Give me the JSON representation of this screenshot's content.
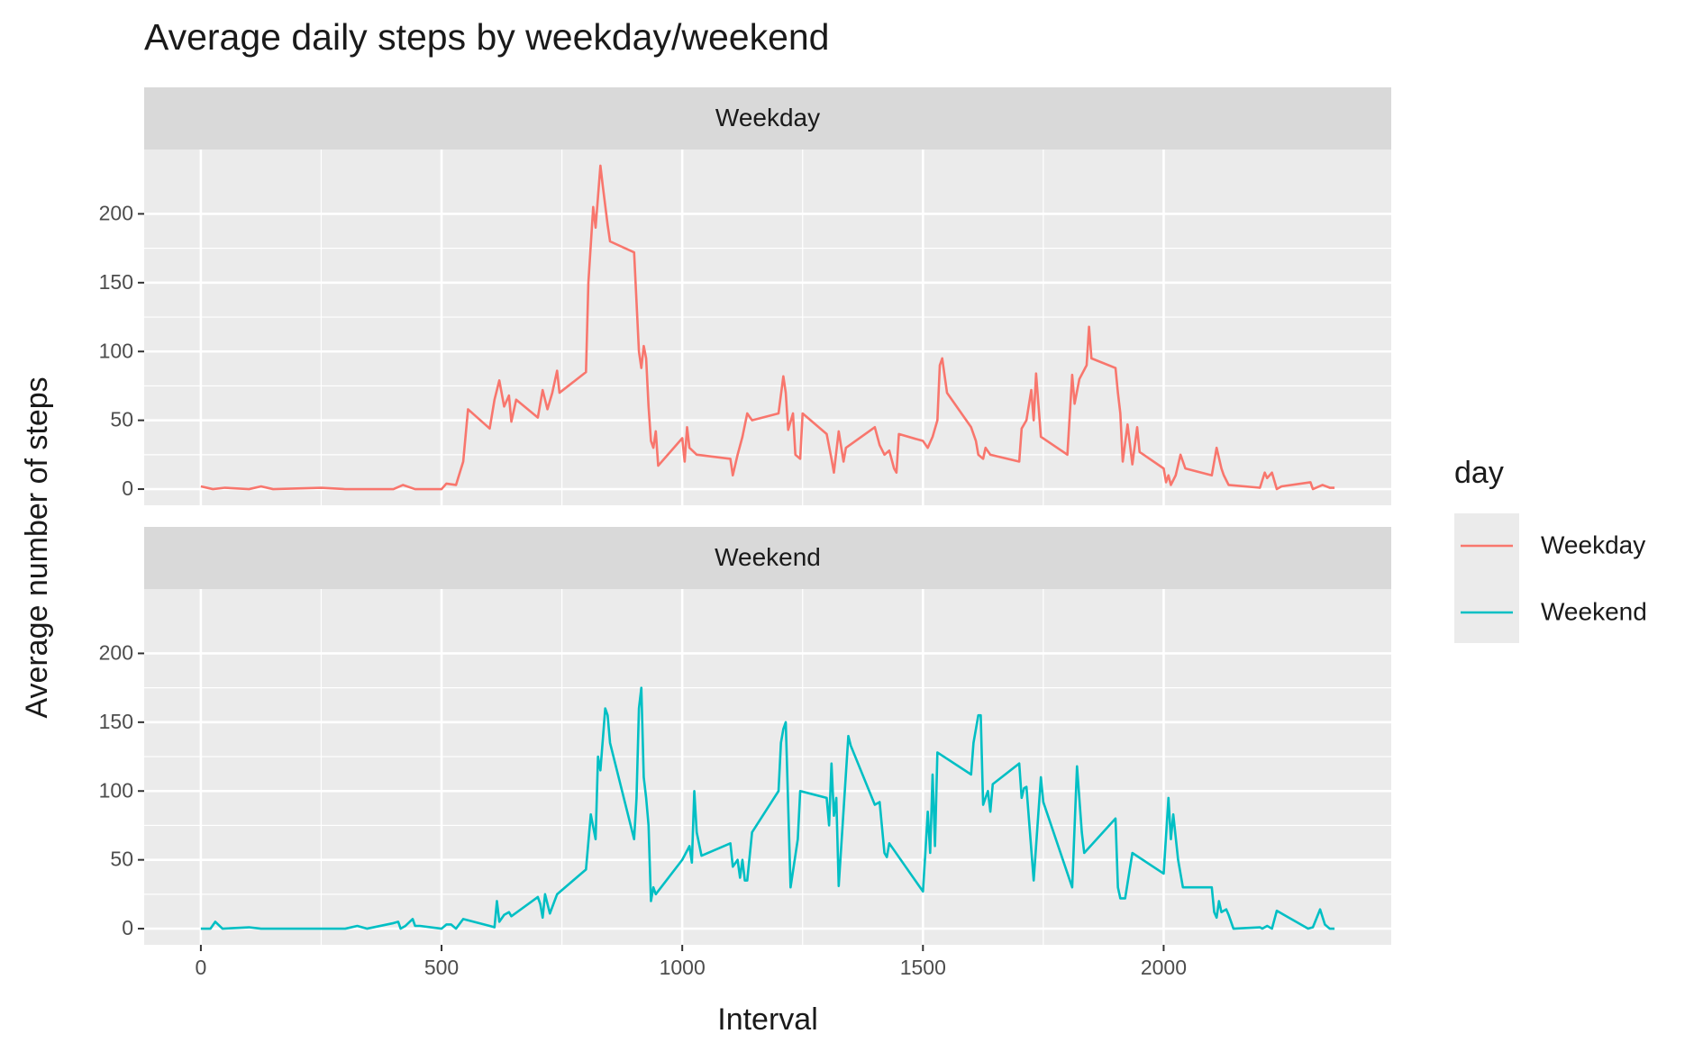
{
  "chart_data": {
    "type": "line",
    "title": "Average daily steps by weekday/weekend",
    "x_label": "Interval",
    "y_label": "Average number of steps",
    "legend_title": "day",
    "facet": true,
    "grid": true,
    "xlim": [
      -117.75,
      2472.75
    ],
    "xticks": [
      0,
      500,
      1000,
      1500,
      2000
    ],
    "ylim": [
      -11.75,
      246.75
    ],
    "yticks": [
      0,
      50,
      100,
      150,
      200
    ],
    "series": [
      {
        "name": "Weekday",
        "color": "#F8766D",
        "x": [
          0,
          25,
          50,
          100,
          125,
          150,
          250,
          300,
          400,
          420,
          445,
          500,
          510,
          530,
          545,
          555,
          600,
          610,
          620,
          630,
          640,
          645,
          655,
          700,
          710,
          720,
          730,
          740,
          745,
          800,
          805,
          815,
          820,
          830,
          835,
          845,
          850,
          900,
          910,
          915,
          920,
          925,
          930,
          935,
          940,
          945,
          950,
          1000,
          1005,
          1010,
          1015,
          1030,
          1100,
          1105,
          1115,
          1125,
          1135,
          1145,
          1200,
          1210,
          1215,
          1220,
          1230,
          1235,
          1245,
          1250,
          1300,
          1310,
          1315,
          1325,
          1335,
          1340,
          1400,
          1410,
          1420,
          1430,
          1440,
          1445,
          1450,
          1500,
          1510,
          1520,
          1530,
          1535,
          1540,
          1550,
          1600,
          1610,
          1615,
          1625,
          1630,
          1640,
          1700,
          1705,
          1715,
          1725,
          1730,
          1735,
          1745,
          1800,
          1810,
          1815,
          1825,
          1840,
          1845,
          1850,
          1900,
          1905,
          1910,
          1915,
          1925,
          1935,
          1945,
          1950,
          2000,
          2005,
          2010,
          2015,
          2025,
          2035,
          2045,
          2100,
          2110,
          2120,
          2125,
          2135,
          2200,
          2210,
          2215,
          2225,
          2235,
          2245,
          2305,
          2310,
          2330,
          2345,
          2355
        ],
        "values": [
          2,
          0,
          1,
          0,
          2,
          0,
          1,
          0,
          0,
          3,
          0,
          0,
          4,
          3,
          20,
          58,
          44,
          65,
          79,
          60,
          68,
          49,
          65,
          52,
          72,
          58,
          70,
          86,
          70,
          85,
          150,
          205,
          190,
          235,
          220,
          192,
          180,
          172,
          100,
          88,
          104,
          95,
          60,
          35,
          30,
          42,
          17,
          37,
          20,
          45,
          30,
          25,
          22,
          10,
          25,
          38,
          55,
          50,
          55,
          82,
          70,
          43,
          55,
          25,
          22,
          55,
          40,
          22,
          12,
          42,
          20,
          30,
          45,
          32,
          25,
          28,
          15,
          12,
          40,
          35,
          30,
          38,
          50,
          90,
          95,
          70,
          45,
          35,
          25,
          22,
          30,
          25,
          20,
          44,
          50,
          72,
          50,
          84,
          38,
          25,
          83,
          62,
          80,
          90,
          118,
          95,
          88,
          70,
          55,
          20,
          47,
          18,
          45,
          27,
          15,
          5,
          10,
          3,
          10,
          25,
          15,
          10,
          30,
          15,
          10,
          3,
          1,
          12,
          8,
          12,
          0,
          2,
          5,
          0,
          3,
          1,
          1
        ]
      },
      {
        "name": "Weekend",
        "color": "#00BFC4",
        "x": [
          0,
          20,
          30,
          45,
          100,
          125,
          200,
          300,
          325,
          345,
          400,
          410,
          415,
          425,
          440,
          445,
          455,
          500,
          510,
          520,
          530,
          545,
          600,
          610,
          615,
          620,
          630,
          640,
          645,
          700,
          705,
          710,
          715,
          725,
          740,
          800,
          810,
          820,
          825,
          830,
          840,
          845,
          850,
          900,
          905,
          910,
          915,
          920,
          925,
          930,
          935,
          940,
          945,
          1000,
          1015,
          1020,
          1025,
          1030,
          1040,
          1100,
          1105,
          1115,
          1120,
          1125,
          1130,
          1135,
          1145,
          1200,
          1205,
          1210,
          1215,
          1225,
          1240,
          1245,
          1300,
          1305,
          1310,
          1315,
          1320,
          1325,
          1345,
          1350,
          1400,
          1410,
          1420,
          1425,
          1430,
          1500,
          1505,
          1510,
          1515,
          1520,
          1525,
          1530,
          1600,
          1605,
          1615,
          1620,
          1625,
          1635,
          1640,
          1645,
          1700,
          1705,
          1710,
          1715,
          1730,
          1745,
          1750,
          1810,
          1820,
          1830,
          1835,
          1900,
          1905,
          1910,
          1920,
          1935,
          2000,
          2010,
          2015,
          2020,
          2030,
          2040,
          2100,
          2105,
          2110,
          2115,
          2120,
          2130,
          2135,
          2145,
          2200,
          2205,
          2215,
          2225,
          2235,
          2300,
          2310,
          2325,
          2335,
          2345,
          2355
        ],
        "values": [
          0,
          0,
          5,
          0,
          1,
          0,
          0,
          0,
          2,
          0,
          4,
          5,
          0,
          2,
          7,
          2,
          2,
          0,
          3,
          3,
          0,
          7,
          2,
          1,
          20,
          5,
          10,
          12,
          9,
          23,
          18,
          8,
          25,
          11,
          25,
          43,
          83,
          65,
          125,
          115,
          160,
          155,
          135,
          65,
          95,
          160,
          175,
          110,
          95,
          75,
          20,
          30,
          25,
          50,
          60,
          48,
          100,
          70,
          53,
          62,
          45,
          50,
          37,
          50,
          35,
          35,
          70,
          100,
          135,
          145,
          150,
          30,
          65,
          100,
          95,
          75,
          120,
          82,
          95,
          31,
          140,
          133,
          90,
          92,
          55,
          52,
          62,
          27,
          55,
          85,
          55,
          112,
          60,
          128,
          112,
          135,
          155,
          155,
          90,
          100,
          85,
          105,
          120,
          95,
          102,
          103,
          35,
          110,
          92,
          30,
          118,
          70,
          55,
          80,
          30,
          22,
          22,
          55,
          40,
          95,
          65,
          83,
          50,
          30,
          30,
          12,
          8,
          20,
          12,
          14,
          10,
          0,
          1,
          0,
          2,
          0,
          13,
          0,
          1,
          14,
          3,
          0,
          0
        ]
      }
    ]
  }
}
